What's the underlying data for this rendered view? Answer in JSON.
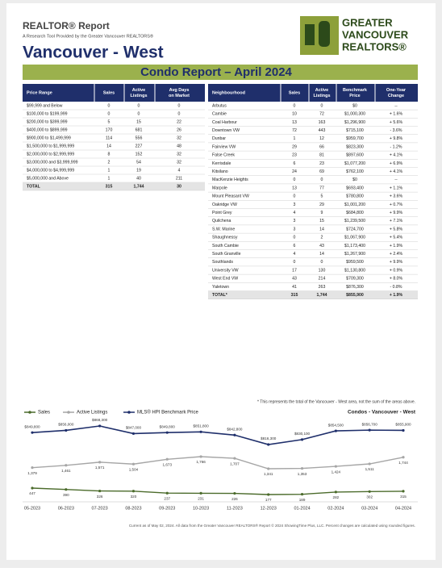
{
  "header": {
    "report": "REALTOR® Report",
    "tagline": "A Research Tool Provided by the Greater Vancouver REALTORS®",
    "area": "Vancouver - West",
    "logo": [
      "GREATER",
      "VANCOUVER",
      "REALTORS®"
    ],
    "banner": "Condo Report – April 2024"
  },
  "price_table": {
    "columns": [
      [
        "Price Range"
      ],
      [
        "Sales"
      ],
      [
        "Active",
        "Listings"
      ],
      [
        "Avg Days",
        "on Market"
      ]
    ],
    "rows": [
      [
        "$99,999 and Below",
        "0",
        "0",
        "0"
      ],
      [
        "$100,000 to $199,999",
        "0",
        "0",
        "0"
      ],
      [
        "$200,000 to $399,999",
        "5",
        "15",
        "22"
      ],
      [
        "$400,000 to $899,999",
        "170",
        "681",
        "26"
      ],
      [
        "$900,000 to $1,499,999",
        "114",
        "556",
        "32"
      ],
      [
        "$1,500,000 to $1,999,999",
        "14",
        "227",
        "48"
      ],
      [
        "$2,000,000 to $2,999,999",
        "8",
        "152",
        "32"
      ],
      [
        "$3,000,000 and $3,999,999",
        "2",
        "54",
        "32"
      ],
      [
        "$4,000,000 to $4,999,999",
        "1",
        "19",
        "4"
      ],
      [
        "$5,000,000 and Above",
        "1",
        "40",
        "211"
      ],
      [
        "TOTAL",
        "315",
        "1,744",
        "30"
      ]
    ]
  },
  "neighbourhood_table": {
    "columns": [
      [
        "Neighbourhood"
      ],
      [
        "Sales"
      ],
      [
        "Active",
        "Listings"
      ],
      [
        "Benchmark",
        "Price"
      ],
      [
        "One-Year",
        "Change"
      ]
    ],
    "rows": [
      [
        "Arbutus",
        "0",
        "0",
        "$0",
        "--"
      ],
      [
        "Cambie",
        "10",
        "72",
        "$1,000,300",
        "+ 1.6%"
      ],
      [
        "Coal Harbour",
        "13",
        "163",
        "$1,296,900",
        "+ 5.6%"
      ],
      [
        "Downtown VW",
        "72",
        "443",
        "$715,100",
        "- 3.6%"
      ],
      [
        "Dunbar",
        "1",
        "12",
        "$959,700",
        "+ 9.8%"
      ],
      [
        "Fairview VW",
        "29",
        "66",
        "$823,300",
        "- 1.2%"
      ],
      [
        "False Creek",
        "23",
        "81",
        "$897,600",
        "+ 4.1%"
      ],
      [
        "Kerrisdale",
        "6",
        "23",
        "$1,077,200",
        "+ 6.9%"
      ],
      [
        "Kitsilano",
        "24",
        "69",
        "$762,100",
        "+ 4.1%"
      ],
      [
        "MacKenzie Heights",
        "0",
        "0",
        "$0",
        "--"
      ],
      [
        "Marpole",
        "13",
        "77",
        "$693,400",
        "+ 1.1%"
      ],
      [
        "Mount Pleasant VW",
        "0",
        "5",
        "$780,800",
        "+ 3.6%"
      ],
      [
        "Oakridge VW",
        "3",
        "29",
        "$1,001,200",
        "+ 0.7%"
      ],
      [
        "Point Grey",
        "4",
        "9",
        "$684,800",
        "+ 9.9%"
      ],
      [
        "Quilchena",
        "3",
        "15",
        "$1,239,500",
        "+ 7.1%"
      ],
      [
        "S.W. Marine",
        "3",
        "14",
        "$724,700",
        "+ 5.8%"
      ],
      [
        "Shaughnessy",
        "0",
        "2",
        "$1,067,900",
        "+ 5.4%"
      ],
      [
        "South Cambie",
        "6",
        "43",
        "$1,173,400",
        "+ 1.9%"
      ],
      [
        "South Granville",
        "4",
        "14",
        "$1,267,900",
        "+ 2.4%"
      ],
      [
        "Southlands",
        "0",
        "0",
        "$959,500",
        "+ 9.9%"
      ],
      [
        "University VW",
        "17",
        "130",
        "$1,130,800",
        "+ 0.9%"
      ],
      [
        "West End VW",
        "43",
        "214",
        "$709,300",
        "+ 8.0%"
      ],
      [
        "Yaletown",
        "41",
        "263",
        "$876,300",
        "- 0.8%"
      ],
      [
        "TOTAL*",
        "315",
        "1,744",
        "$855,900",
        "+ 1.9%"
      ]
    ]
  },
  "note": "* This represents the total of the Vancouver - West area, not the sum of the areas above.",
  "chart_data": {
    "type": "line",
    "title": "Condos - Vancouver - West",
    "categories": [
      "05-2023",
      "06-2023",
      "07-2023",
      "08-2023",
      "09-2023",
      "10-2023",
      "11-2023",
      "12-2023",
      "01-2024",
      "02-2024",
      "03-2024",
      "04-2024"
    ],
    "series": [
      {
        "name": "Sales",
        "color": "#4b6b2b",
        "values": [
          447,
          390,
          326,
          320,
          237,
          231,
          226,
          177,
          189,
          282,
          302,
          315
        ]
      },
      {
        "name": "Active Listings",
        "color": "#a6a6a6",
        "values": [
          1379,
          1461,
          1571,
          1504,
          1673,
          1766,
          1707,
          1341,
          1353,
          1424,
          1511,
          1744
        ],
        "value_labels": [
          "1,379",
          "1,461",
          "1,571",
          "1,504",
          "1,673",
          "1,766",
          "1,707",
          "1,341",
          "1,353",
          "1,424",
          "1,511",
          "1,744"
        ]
      },
      {
        "name": "MLS® HPI Benchmark Price",
        "color": "#1f2f6b",
        "values": [
          849800,
          856000,
          868300,
          847000,
          849800,
          851800,
          842800,
          816300,
          830100,
          854500,
          856700,
          855900
        ],
        "value_labels": [
          "$849,800",
          "$856,000",
          "$868,300",
          "$847,000",
          "$849,800",
          "$851,800",
          "$842,800",
          "$816,300",
          "$830,100",
          "$854,500",
          "$856,700",
          "$855,900"
        ]
      }
    ]
  },
  "footer": "Current as of May 02, 2024. All data from the Greater Vancouver REALTORS® Report © 2024 ShowingTime Plus, LLC. Percent changes are calculated using rounded figures."
}
